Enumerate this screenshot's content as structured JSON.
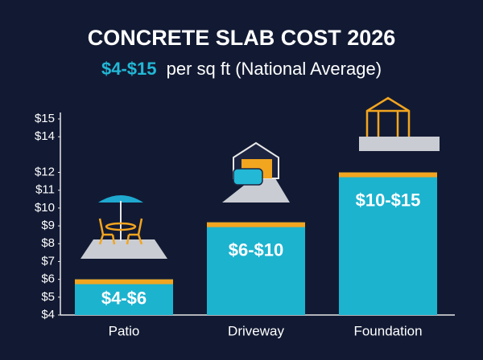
{
  "chart_data": {
    "type": "bar",
    "title": "CONCRETE SLAB COST 2026",
    "subtitle_price": "$4-$15",
    "subtitle": "per sq ft (National Average)",
    "categories": [
      "Patio",
      "Driveway",
      "Foundation"
    ],
    "values": [
      6,
      9.2,
      12
    ],
    "bar_labels": [
      "$4-$6",
      "$6-$10",
      "$10-$15"
    ],
    "color": "#1cb3cf",
    "cap_color": "#f2a51f",
    "ylim": [
      4,
      15
    ],
    "yticks": [
      {
        "value": 4,
        "label": "$4"
      },
      {
        "value": 5,
        "label": "$5"
      },
      {
        "value": 6,
        "label": "$6"
      },
      {
        "value": 7,
        "label": "$7"
      },
      {
        "value": 8,
        "label": "$8"
      },
      {
        "value": 9,
        "label": "$9"
      },
      {
        "value": 10,
        "label": "$10"
      },
      {
        "value": 11,
        "label": "$11"
      },
      {
        "value": 12,
        "label": "$12"
      },
      {
        "value": 14,
        "label": "$14"
      },
      {
        "value": 15,
        "label": "$15"
      }
    ],
    "grid": false
  }
}
